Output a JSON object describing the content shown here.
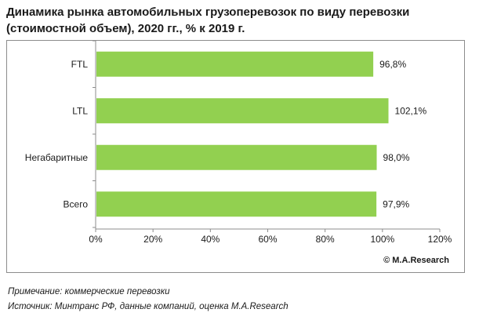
{
  "title_line1": "Динамика рынка автомобильных грузоперевозок по виду перевозки",
  "title_line2": "(стоимостной объем), 2020 гг., % к 2019 г.",
  "copyright": "© M.A.Research",
  "note": "Примечание: коммерческие перевозки",
  "source": "Источник: Минтранс РФ,  данные компаний, оценка M.A.Research",
  "colors": {
    "bar": "#92d050",
    "axis": "#8c8c8c",
    "frame": "#8c8c8c"
  },
  "chart_data": {
    "type": "bar",
    "orientation": "horizontal",
    "categories": [
      "FTL",
      "LTL",
      "Негабаритные",
      "Всего"
    ],
    "values": [
      96.8,
      102.1,
      98.0,
      97.9
    ],
    "value_labels": [
      "96,8%",
      "102,1%",
      "98,0%",
      "97,9%"
    ],
    "xlim": [
      0,
      120
    ],
    "xticks": [
      0,
      20,
      40,
      60,
      80,
      100,
      120
    ],
    "xtick_labels": [
      "0%",
      "20%",
      "40%",
      "60%",
      "80%",
      "100%",
      "120%"
    ],
    "grid": false,
    "legend": "none"
  }
}
